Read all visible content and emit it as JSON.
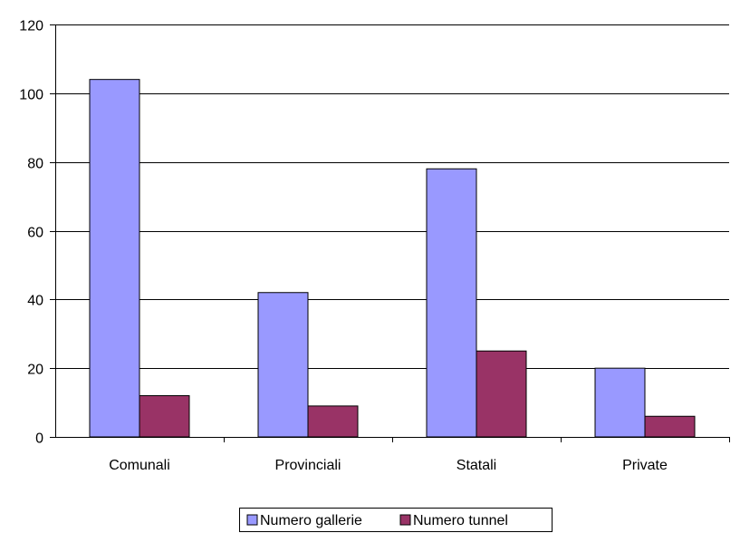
{
  "chart_data": {
    "type": "bar",
    "categories": [
      "Comunali",
      "Provinciali",
      "Statali",
      "Private"
    ],
    "series": [
      {
        "name": "Numero gallerie",
        "values": [
          104,
          42,
          78,
          20
        ],
        "color": "#9999ff"
      },
      {
        "name": "Numero tunnel",
        "values": [
          12,
          9,
          25,
          6
        ],
        "color": "#993366"
      }
    ],
    "ylim": [
      0,
      120
    ],
    "yticks": [
      0,
      20,
      40,
      60,
      80,
      100,
      120
    ],
    "grid": true,
    "legend_position": "bottom"
  }
}
